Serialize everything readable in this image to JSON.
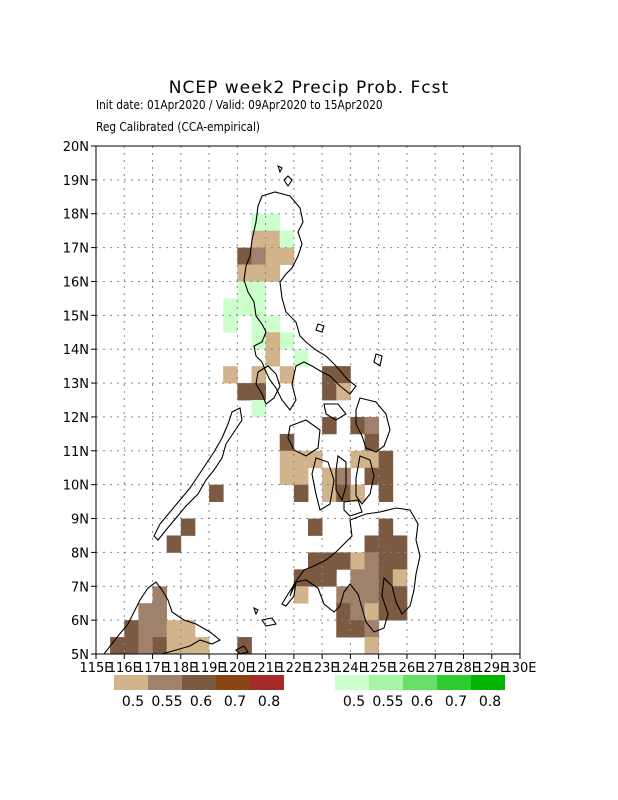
{
  "title": "NCEP week2 Precip Prob. Fcst",
  "subtitle_line1": "Init date: 01Apr2020 / Valid: 09Apr2020 to 15Apr2020",
  "subtitle_line2": "Reg Calibrated (CCA-empirical)",
  "map": {
    "lon_range": [
      115,
      130
    ],
    "lat_range": [
      5,
      20
    ],
    "lon_ticks": [
      "115E",
      "116E",
      "117E",
      "118E",
      "119E",
      "120E",
      "121E",
      "122E",
      "123E",
      "124E",
      "125E",
      "126E",
      "127E",
      "128E",
      "129E",
      "130E"
    ],
    "lat_ticks": [
      "5N",
      "6N",
      "7N",
      "8N",
      "9N",
      "10N",
      "11N",
      "12N",
      "13N",
      "14N",
      "15N",
      "16N",
      "17N",
      "18N",
      "19N",
      "20N"
    ],
    "grid": "dotted"
  },
  "legend": {
    "below_normal": {
      "colors": [
        "#d2b48c",
        "#a0826c",
        "#7b5a41",
        "#8b4513",
        "#a52a2a"
      ],
      "labels": [
        "0.5",
        "0.55",
        "0.6",
        "0.7",
        "0.8"
      ]
    },
    "above_normal": {
      "colors": [
        "#ccffcc",
        "#a6f5a6",
        "#66e066",
        "#2ecc2e",
        "#00b400"
      ],
      "labels": [
        "0.5",
        "0.55",
        "0.6",
        "0.7",
        "0.8"
      ]
    }
  },
  "cells": [
    {
      "lon": 120.75,
      "lat": 17.75,
      "v": "g1"
    },
    {
      "lon": 121.25,
      "lat": 17.75,
      "v": "g1"
    },
    {
      "lon": 120.75,
      "lat": 17.25,
      "v": "t"
    },
    {
      "lon": 121.25,
      "lat": 17.25,
      "v": "t"
    },
    {
      "lon": 121.75,
      "lat": 17.25,
      "v": "g1"
    },
    {
      "lon": 120.25,
      "lat": 16.75,
      "v": "b"
    },
    {
      "lon": 120.75,
      "lat": 16.75,
      "v": "m"
    },
    {
      "lon": 121.25,
      "lat": 16.75,
      "v": "t"
    },
    {
      "lon": 121.75,
      "lat": 16.75,
      "v": "t"
    },
    {
      "lon": 120.25,
      "lat": 16.25,
      "v": "t"
    },
    {
      "lon": 120.75,
      "lat": 16.25,
      "v": "t"
    },
    {
      "lon": 121.25,
      "lat": 16.25,
      "v": "t"
    },
    {
      "lon": 120.25,
      "lat": 15.75,
      "v": "g1"
    },
    {
      "lon": 120.75,
      "lat": 15.75,
      "v": "g1"
    },
    {
      "lon": 119.75,
      "lat": 15.25,
      "v": "g1"
    },
    {
      "lon": 120.25,
      "lat": 15.25,
      "v": "g1"
    },
    {
      "lon": 120.75,
      "lat": 15.25,
      "v": "g1"
    },
    {
      "lon": 119.75,
      "lat": 14.75,
      "v": "g1"
    },
    {
      "lon": 120.75,
      "lat": 14.75,
      "v": "g1"
    },
    {
      "lon": 121.25,
      "lat": 14.75,
      "v": "g1"
    },
    {
      "lon": 120.75,
      "lat": 14.25,
      "v": "g1"
    },
    {
      "lon": 121.75,
      "lat": 14.25,
      "v": "g1"
    },
    {
      "lon": 121.25,
      "lat": 14.25,
      "v": "t"
    },
    {
      "lon": 121.25,
      "lat": 13.75,
      "v": "t"
    },
    {
      "lon": 122.25,
      "lat": 13.75,
      "v": "g1"
    },
    {
      "lon": 119.75,
      "lat": 13.25,
      "v": "t"
    },
    {
      "lon": 120.75,
      "lat": 13.25,
      "v": "t"
    },
    {
      "lon": 121.75,
      "lat": 13.25,
      "v": "t"
    },
    {
      "lon": 123.25,
      "lat": 13.25,
      "v": "b"
    },
    {
      "lon": 123.75,
      "lat": 13.25,
      "v": "b"
    },
    {
      "lon": 120.25,
      "lat": 12.75,
      "v": "b"
    },
    {
      "lon": 120.75,
      "lat": 12.75,
      "v": "b"
    },
    {
      "lon": 123.25,
      "lat": 12.75,
      "v": "b"
    },
    {
      "lon": 123.75,
      "lat": 12.75,
      "v": "t"
    },
    {
      "lon": 120.75,
      "lat": 12.25,
      "v": "g1"
    },
    {
      "lon": 123.25,
      "lat": 11.75,
      "v": "b"
    },
    {
      "lon": 124.25,
      "lat": 11.75,
      "v": "b"
    },
    {
      "lon": 124.75,
      "lat": 11.75,
      "v": "m"
    },
    {
      "lon": 121.75,
      "lat": 11.25,
      "v": "b"
    },
    {
      "lon": 124.75,
      "lat": 11.25,
      "v": "b"
    },
    {
      "lon": 121.75,
      "lat": 10.75,
      "v": "t"
    },
    {
      "lon": 122.25,
      "lat": 10.75,
      "v": "t"
    },
    {
      "lon": 122.75,
      "lat": 10.75,
      "v": "t"
    },
    {
      "lon": 124.25,
      "lat": 10.75,
      "v": "t"
    },
    {
      "lon": 124.75,
      "lat": 10.75,
      "v": "t"
    },
    {
      "lon": 125.25,
      "lat": 10.75,
      "v": "b"
    },
    {
      "lon": 121.75,
      "lat": 10.25,
      "v": "t"
    },
    {
      "lon": 122.25,
      "lat": 10.25,
      "v": "t"
    },
    {
      "lon": 123.25,
      "lat": 10.25,
      "v": "t"
    },
    {
      "lon": 123.75,
      "lat": 10.25,
      "v": "m"
    },
    {
      "lon": 124.75,
      "lat": 10.25,
      "v": "b"
    },
    {
      "lon": 125.25,
      "lat": 10.25,
      "v": "b"
    },
    {
      "lon": 119.25,
      "lat": 9.75,
      "v": "b"
    },
    {
      "lon": 122.25,
      "lat": 9.75,
      "v": "b"
    },
    {
      "lon": 123.25,
      "lat": 9.75,
      "v": "t"
    },
    {
      "lon": 123.75,
      "lat": 9.75,
      "v": "b"
    },
    {
      "lon": 124.25,
      "lat": 9.75,
      "v": "t"
    },
    {
      "lon": 125.25,
      "lat": 9.75,
      "v": "b"
    },
    {
      "lon": 118.25,
      "lat": 8.75,
      "v": "b"
    },
    {
      "lon": 122.75,
      "lat": 8.75,
      "v": "b"
    },
    {
      "lon": 125.25,
      "lat": 8.75,
      "v": "b"
    },
    {
      "lon": 117.75,
      "lat": 8.25,
      "v": "b"
    },
    {
      "lon": 124.75,
      "lat": 8.25,
      "v": "b"
    },
    {
      "lon": 125.25,
      "lat": 8.25,
      "v": "b"
    },
    {
      "lon": 125.75,
      "lat": 8.25,
      "v": "b"
    },
    {
      "lon": 122.75,
      "lat": 7.75,
      "v": "b"
    },
    {
      "lon": 123.25,
      "lat": 7.75,
      "v": "b"
    },
    {
      "lon": 123.75,
      "lat": 7.75,
      "v": "b"
    },
    {
      "lon": 124.25,
      "lat": 7.75,
      "v": "t"
    },
    {
      "lon": 124.75,
      "lat": 7.75,
      "v": "m"
    },
    {
      "lon": 125.25,
      "lat": 7.75,
      "v": "b"
    },
    {
      "lon": 125.75,
      "lat": 7.75,
      "v": "b"
    },
    {
      "lon": 122.25,
      "lat": 7.25,
      "v": "b"
    },
    {
      "lon": 122.75,
      "lat": 7.25,
      "v": "b"
    },
    {
      "lon": 123.25,
      "lat": 7.25,
      "v": "b"
    },
    {
      "lon": 124.25,
      "lat": 7.25,
      "v": "m"
    },
    {
      "lon": 124.75,
      "lat": 7.25,
      "v": "m"
    },
    {
      "lon": 125.25,
      "lat": 7.25,
      "v": "b"
    },
    {
      "lon": 125.75,
      "lat": 7.25,
      "v": "t"
    },
    {
      "lon": 117.25,
      "lat": 6.75,
      "v": "m"
    },
    {
      "lon": 122.25,
      "lat": 6.75,
      "v": "t"
    },
    {
      "lon": 123.75,
      "lat": 6.75,
      "v": "m"
    },
    {
      "lon": 124.25,
      "lat": 6.75,
      "v": "m"
    },
    {
      "lon": 124.75,
      "lat": 6.75,
      "v": "m"
    },
    {
      "lon": 125.25,
      "lat": 6.75,
      "v": "b"
    },
    {
      "lon": 125.75,
      "lat": 6.75,
      "v": "b"
    },
    {
      "lon": 116.75,
      "lat": 6.25,
      "v": "m"
    },
    {
      "lon": 117.25,
      "lat": 6.25,
      "v": "m"
    },
    {
      "lon": 123.75,
      "lat": 6.25,
      "v": "b"
    },
    {
      "lon": 124.25,
      "lat": 6.25,
      "v": "m"
    },
    {
      "lon": 124.75,
      "lat": 6.25,
      "v": "t"
    },
    {
      "lon": 125.25,
      "lat": 6.25,
      "v": "b"
    },
    {
      "lon": 125.75,
      "lat": 6.25,
      "v": "b"
    },
    {
      "lon": 116.25,
      "lat": 5.75,
      "v": "b"
    },
    {
      "lon": 116.75,
      "lat": 5.75,
      "v": "m"
    },
    {
      "lon": 117.25,
      "lat": 5.75,
      "v": "m"
    },
    {
      "lon": 117.75,
      "lat": 5.75,
      "v": "t"
    },
    {
      "lon": 118.25,
      "lat": 5.75,
      "v": "t"
    },
    {
      "lon": 123.75,
      "lat": 5.75,
      "v": "b"
    },
    {
      "lon": 124.25,
      "lat": 5.75,
      "v": "b"
    },
    {
      "lon": 124.75,
      "lat": 5.75,
      "v": "m"
    },
    {
      "lon": 115.75,
      "lat": 5.25,
      "v": "b"
    },
    {
      "lon": 116.25,
      "lat": 5.25,
      "v": "b"
    },
    {
      "lon": 116.75,
      "lat": 5.25,
      "v": "m"
    },
    {
      "lon": 117.25,
      "lat": 5.25,
      "v": "b"
    },
    {
      "lon": 117.75,
      "lat": 5.25,
      "v": "t"
    },
    {
      "lon": 118.25,
      "lat": 5.25,
      "v": "t"
    },
    {
      "lon": 118.75,
      "lat": 5.25,
      "v": "t"
    },
    {
      "lon": 120.25,
      "lat": 5.25,
      "v": "b"
    },
    {
      "lon": 124.75,
      "lat": 5.25,
      "v": "t"
    }
  ],
  "cell_colors": {
    "t": "#d2b48c",
    "m": "#a0826c",
    "b": "#7b5a41",
    "g1": "#ccffcc"
  }
}
